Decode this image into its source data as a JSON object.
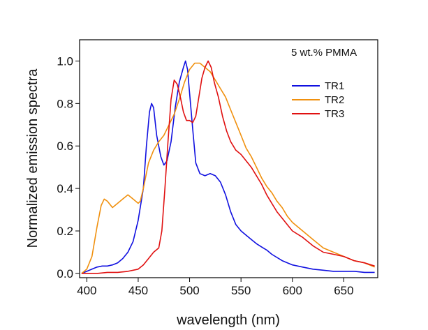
{
  "chart_data": {
    "type": "line",
    "title": "",
    "annotation": "5 wt.% PMMA",
    "xlabel": "wavelength (nm)",
    "ylabel": "Normalized emission spectra",
    "xlim": [
      393,
      683
    ],
    "ylim": [
      -0.02,
      1.1
    ],
    "xticks": [
      400,
      450,
      500,
      550,
      600,
      650
    ],
    "yticks": [
      0.0,
      0.2,
      0.4,
      0.6,
      0.8,
      1.0
    ],
    "xtick_labels": [
      "400",
      "450",
      "500",
      "550",
      "600",
      "650"
    ],
    "ytick_labels": [
      "0.0",
      "0.2",
      "0.4",
      "0.6",
      "0.8",
      "1.0"
    ],
    "grid": false,
    "legend_position": "top-right",
    "series": [
      {
        "name": "TR1",
        "color": "#1010e0",
        "points": [
          [
            395,
            0.0
          ],
          [
            400,
            0.01
          ],
          [
            405,
            0.02
          ],
          [
            410,
            0.03
          ],
          [
            415,
            0.035
          ],
          [
            420,
            0.035
          ],
          [
            425,
            0.04
          ],
          [
            430,
            0.05
          ],
          [
            435,
            0.07
          ],
          [
            440,
            0.1
          ],
          [
            445,
            0.15
          ],
          [
            450,
            0.25
          ],
          [
            455,
            0.4
          ],
          [
            458,
            0.6
          ],
          [
            461,
            0.76
          ],
          [
            463,
            0.8
          ],
          [
            465,
            0.78
          ],
          [
            468,
            0.65
          ],
          [
            472,
            0.55
          ],
          [
            475,
            0.51
          ],
          [
            478,
            0.53
          ],
          [
            482,
            0.62
          ],
          [
            486,
            0.78
          ],
          [
            490,
            0.9
          ],
          [
            494,
            0.97
          ],
          [
            496,
            1.0
          ],
          [
            498,
            0.96
          ],
          [
            500,
            0.85
          ],
          [
            503,
            0.68
          ],
          [
            506,
            0.52
          ],
          [
            510,
            0.47
          ],
          [
            515,
            0.46
          ],
          [
            520,
            0.47
          ],
          [
            525,
            0.46
          ],
          [
            530,
            0.43
          ],
          [
            535,
            0.37
          ],
          [
            540,
            0.29
          ],
          [
            545,
            0.23
          ],
          [
            550,
            0.2
          ],
          [
            555,
            0.18
          ],
          [
            560,
            0.16
          ],
          [
            565,
            0.14
          ],
          [
            570,
            0.125
          ],
          [
            575,
            0.11
          ],
          [
            580,
            0.09
          ],
          [
            590,
            0.06
          ],
          [
            600,
            0.04
          ],
          [
            610,
            0.03
          ],
          [
            620,
            0.02
          ],
          [
            630,
            0.015
          ],
          [
            640,
            0.01
          ],
          [
            650,
            0.01
          ],
          [
            660,
            0.01
          ],
          [
            670,
            0.005
          ],
          [
            680,
            0.005
          ]
        ]
      },
      {
        "name": "TR2",
        "color": "#f0900e",
        "points": [
          [
            395,
            0.0
          ],
          [
            400,
            0.02
          ],
          [
            405,
            0.08
          ],
          [
            410,
            0.22
          ],
          [
            414,
            0.32
          ],
          [
            417,
            0.35
          ],
          [
            420,
            0.34
          ],
          [
            425,
            0.31
          ],
          [
            430,
            0.33
          ],
          [
            435,
            0.35
          ],
          [
            440,
            0.37
          ],
          [
            445,
            0.35
          ],
          [
            450,
            0.33
          ],
          [
            452,
            0.34
          ],
          [
            455,
            0.4
          ],
          [
            460,
            0.52
          ],
          [
            465,
            0.58
          ],
          [
            470,
            0.62
          ],
          [
            475,
            0.65
          ],
          [
            480,
            0.7
          ],
          [
            485,
            0.75
          ],
          [
            490,
            0.82
          ],
          [
            495,
            0.9
          ],
          [
            500,
            0.96
          ],
          [
            505,
            0.99
          ],
          [
            510,
            0.99
          ],
          [
            515,
            0.97
          ],
          [
            520,
            0.95
          ],
          [
            525,
            0.91
          ],
          [
            530,
            0.87
          ],
          [
            535,
            0.83
          ],
          [
            540,
            0.77
          ],
          [
            545,
            0.71
          ],
          [
            550,
            0.65
          ],
          [
            555,
            0.59
          ],
          [
            560,
            0.55
          ],
          [
            565,
            0.5
          ],
          [
            570,
            0.45
          ],
          [
            575,
            0.41
          ],
          [
            580,
            0.38
          ],
          [
            585,
            0.34
          ],
          [
            590,
            0.31
          ],
          [
            595,
            0.27
          ],
          [
            600,
            0.24
          ],
          [
            610,
            0.2
          ],
          [
            620,
            0.16
          ],
          [
            630,
            0.12
          ],
          [
            640,
            0.1
          ],
          [
            650,
            0.08
          ],
          [
            660,
            0.06
          ],
          [
            670,
            0.05
          ],
          [
            680,
            0.03
          ]
        ]
      },
      {
        "name": "TR3",
        "color": "#e01010",
        "points": [
          [
            395,
            0.0
          ],
          [
            400,
            0.0
          ],
          [
            410,
            0.0
          ],
          [
            420,
            0.005
          ],
          [
            430,
            0.005
          ],
          [
            440,
            0.01
          ],
          [
            450,
            0.02
          ],
          [
            455,
            0.04
          ],
          [
            460,
            0.07
          ],
          [
            465,
            0.1
          ],
          [
            470,
            0.12
          ],
          [
            473,
            0.2
          ],
          [
            476,
            0.4
          ],
          [
            479,
            0.62
          ],
          [
            482,
            0.82
          ],
          [
            485,
            0.91
          ],
          [
            488,
            0.89
          ],
          [
            491,
            0.83
          ],
          [
            494,
            0.76
          ],
          [
            497,
            0.72
          ],
          [
            500,
            0.72
          ],
          [
            503,
            0.71
          ],
          [
            506,
            0.74
          ],
          [
            509,
            0.83
          ],
          [
            512,
            0.92
          ],
          [
            515,
            0.97
          ],
          [
            518,
            1.0
          ],
          [
            521,
            0.97
          ],
          [
            524,
            0.9
          ],
          [
            528,
            0.83
          ],
          [
            532,
            0.74
          ],
          [
            536,
            0.67
          ],
          [
            540,
            0.62
          ],
          [
            545,
            0.58
          ],
          [
            550,
            0.56
          ],
          [
            555,
            0.53
          ],
          [
            560,
            0.5
          ],
          [
            565,
            0.46
          ],
          [
            570,
            0.42
          ],
          [
            575,
            0.37
          ],
          [
            580,
            0.33
          ],
          [
            585,
            0.29
          ],
          [
            590,
            0.26
          ],
          [
            595,
            0.23
          ],
          [
            600,
            0.2
          ],
          [
            610,
            0.17
          ],
          [
            620,
            0.13
          ],
          [
            630,
            0.1
          ],
          [
            640,
            0.09
          ],
          [
            650,
            0.08
          ],
          [
            660,
            0.06
          ],
          [
            670,
            0.05
          ],
          [
            680,
            0.035
          ]
        ]
      }
    ]
  }
}
